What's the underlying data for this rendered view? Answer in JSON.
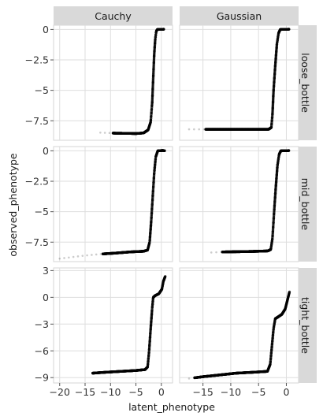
{
  "chart_data": {
    "type": "scatter",
    "xlabel": "latent_phenotype",
    "ylabel": "observed_phenotype",
    "columns": [
      "Cauchy",
      "Gaussian"
    ],
    "rows": [
      "loose_bottle",
      "mid_bottle",
      "tight_bottle"
    ],
    "x_axes": {
      "Cauchy": {
        "ticks": [
          -20,
          -15,
          -10,
          -5,
          0
        ],
        "tick_labels": [
          "−20",
          "−15",
          "−10",
          "−5",
          "0"
        ],
        "xlim": [
          -21.2,
          2.2
        ]
      },
      "Gaussian": {
        "ticks": [
          -15,
          -10,
          -5,
          0
        ],
        "tick_labels": [
          "−15",
          "−10",
          "−5",
          "0"
        ],
        "xlim": [
          -19.2,
          2.2
        ]
      }
    },
    "y_axes": {
      "loose_bottle": {
        "ticks": [
          0,
          -2.5,
          -5,
          -7.5
        ],
        "tick_labels": [
          "0",
          "−2.5",
          "−5",
          "−7.5"
        ],
        "ylim": [
          -9.1,
          0.35
        ]
      },
      "mid_bottle": {
        "ticks": [
          0,
          -2.5,
          -5,
          -7.5
        ],
        "tick_labels": [
          "0",
          "−2.5",
          "−5",
          "−7.5"
        ],
        "ylim": [
          -9.1,
          0.35
        ]
      },
      "tight_bottle": {
        "ticks": [
          3,
          0,
          -3,
          -6,
          -9
        ],
        "tick_labels": [
          "3",
          "0",
          "−3",
          "−6",
          "−9"
        ],
        "ylim": [
          -9.6,
          3.3
        ]
      }
    },
    "grid": true,
    "panels": [
      {
        "col": "Cauchy",
        "row": "loose_bottle",
        "points": [
          [
            -12,
            -8.47
          ],
          [
            -9,
            -8.52
          ],
          [
            -7,
            -8.53
          ],
          [
            -5,
            -8.55
          ],
          [
            -3.5,
            -8.5
          ],
          [
            -2.6,
            -8.25
          ],
          [
            -2.1,
            -7.6
          ],
          [
            -1.8,
            -6.0
          ],
          [
            -1.6,
            -4.0
          ],
          [
            -1.4,
            -2.0
          ],
          [
            -1.2,
            -0.8
          ],
          [
            -1.0,
            -0.15
          ],
          [
            -0.8,
            0.0
          ],
          [
            0.5,
            0.02
          ]
        ],
        "dense_start": -9.5
      },
      {
        "col": "Gaussian",
        "row": "loose_bottle",
        "points": [
          [
            -17.5,
            -8.2
          ],
          [
            -14,
            -8.2
          ],
          [
            -11,
            -8.2
          ],
          [
            -8,
            -8.2
          ],
          [
            -5,
            -8.2
          ],
          [
            -3.2,
            -8.2
          ],
          [
            -2.7,
            -8.05
          ],
          [
            -2.5,
            -7.0
          ],
          [
            -2.3,
            -5.0
          ],
          [
            -2.0,
            -3.0
          ],
          [
            -1.7,
            -1.2
          ],
          [
            -1.4,
            -0.3
          ],
          [
            -1.1,
            0.0
          ],
          [
            0.5,
            0.02
          ]
        ],
        "dense_start": -14.5
      },
      {
        "col": "Cauchy",
        "row": "mid_bottle",
        "points": [
          [
            -20,
            -8.85
          ],
          [
            -15,
            -8.6
          ],
          [
            -12,
            -8.48
          ],
          [
            -9,
            -8.4
          ],
          [
            -6,
            -8.3
          ],
          [
            -3.5,
            -8.25
          ],
          [
            -2.7,
            -8.15
          ],
          [
            -2.3,
            -7.5
          ],
          [
            -2.0,
            -5.8
          ],
          [
            -1.7,
            -3.8
          ],
          [
            -1.4,
            -1.8
          ],
          [
            -1.1,
            -0.5
          ],
          [
            -0.7,
            0.0
          ],
          [
            0.3,
            0.03
          ],
          [
            0.7,
            0.0
          ]
        ],
        "dense_start": -11.5
      },
      {
        "col": "Gaussian",
        "row": "mid_bottle",
        "points": [
          [
            -13.5,
            -8.35
          ],
          [
            -11,
            -8.3
          ],
          [
            -8,
            -8.28
          ],
          [
            -5,
            -8.25
          ],
          [
            -3.3,
            -8.22
          ],
          [
            -2.8,
            -8.1
          ],
          [
            -2.5,
            -7.2
          ],
          [
            -2.2,
            -5.0
          ],
          [
            -1.9,
            -3.0
          ],
          [
            -1.6,
            -1.2
          ],
          [
            -1.3,
            -0.3
          ],
          [
            -1.0,
            0.0
          ],
          [
            0.5,
            0.02
          ]
        ],
        "dense_start": -11.5
      },
      {
        "col": "Cauchy",
        "row": "tight_bottle",
        "points": [
          [
            -13.5,
            -8.5
          ],
          [
            -11,
            -8.4
          ],
          [
            -8,
            -8.3
          ],
          [
            -5,
            -8.2
          ],
          [
            -3.2,
            -8.1
          ],
          [
            -2.7,
            -7.8
          ],
          [
            -2.4,
            -6.0
          ],
          [
            -2.1,
            -3.5
          ],
          [
            -1.8,
            -1.2
          ],
          [
            -1.6,
            0.0
          ],
          [
            -1.2,
            0.2
          ],
          [
            -0.5,
            0.4
          ],
          [
            0.1,
            0.9
          ],
          [
            0.4,
            1.8
          ],
          [
            0.8,
            2.4
          ]
        ],
        "dense_start": -13.5
      },
      {
        "col": "Gaussian",
        "row": "tight_bottle",
        "points": [
          [
            -17.5,
            -9.1
          ],
          [
            -15,
            -8.9
          ],
          [
            -12,
            -8.7
          ],
          [
            -9,
            -8.5
          ],
          [
            -6,
            -8.4
          ],
          [
            -3.4,
            -8.3
          ],
          [
            -2.9,
            -7.5
          ],
          [
            -2.6,
            -5.5
          ],
          [
            -2.3,
            -3.5
          ],
          [
            -2.0,
            -2.4
          ],
          [
            -1.5,
            -2.2
          ],
          [
            -0.8,
            -1.9
          ],
          [
            -0.2,
            -1.3
          ],
          [
            0.2,
            -0.3
          ],
          [
            0.6,
            0.7
          ]
        ],
        "dense_start": -16.5
      }
    ]
  }
}
